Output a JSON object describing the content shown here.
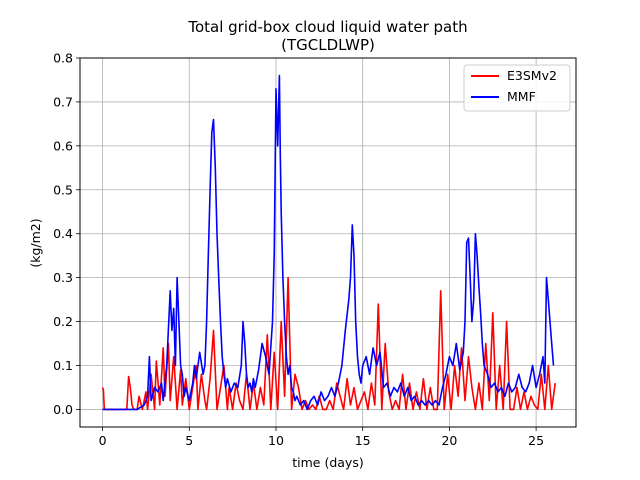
{
  "chart_data": {
    "type": "line",
    "title": "Total grid-box cloud liquid water path",
    "subtitle": "(TGCLDLWP)",
    "xlabel": "time (days)",
    "ylabel": "(kg/m2)",
    "xlim": [
      -1.3,
      27.3
    ],
    "ylim": [
      -0.04,
      0.8
    ],
    "xticks": [
      0,
      5,
      10,
      15,
      20,
      25
    ],
    "yticks": [
      0.0,
      0.1,
      0.2,
      0.3,
      0.4,
      0.5,
      0.6,
      0.7,
      0.8
    ],
    "xtick_labels": [
      "0",
      "5",
      "10",
      "15",
      "20",
      "25"
    ],
    "ytick_labels": [
      "0.0",
      "0.1",
      "0.2",
      "0.3",
      "0.4",
      "0.5",
      "0.6",
      "0.7",
      "0.8"
    ],
    "grid": true,
    "legend_position": "top-right",
    "series": [
      {
        "name": "E3SMv2",
        "color": "#ff0000",
        "x": [
          0.0,
          0.05,
          0.1,
          0.15,
          0.2,
          1.4,
          1.5,
          1.6,
          1.7,
          1.8,
          2.0,
          2.1,
          2.3,
          2.5,
          2.6,
          2.8,
          3.0,
          3.1,
          3.3,
          3.5,
          3.6,
          3.8,
          3.9,
          4.1,
          4.3,
          4.5,
          4.6,
          4.8,
          5.0,
          5.2,
          5.4,
          5.5,
          5.7,
          5.9,
          6.0,
          6.2,
          6.4,
          6.6,
          6.8,
          7.0,
          7.2,
          7.3,
          7.5,
          7.7,
          7.9,
          8.1,
          8.3,
          8.5,
          8.7,
          8.9,
          9.1,
          9.3,
          9.5,
          9.7,
          9.9,
          10.1,
          10.3,
          10.5,
          10.7,
          10.9,
          11.1,
          11.3,
          11.5,
          11.7,
          11.9,
          12.1,
          12.3,
          12.5,
          12.7,
          12.9,
          13.1,
          13.3,
          13.5,
          13.7,
          13.9,
          14.1,
          14.3,
          14.5,
          14.7,
          14.9,
          15.1,
          15.3,
          15.5,
          15.7,
          15.9,
          16.1,
          16.3,
          16.5,
          16.7,
          16.9,
          17.1,
          17.3,
          17.5,
          17.7,
          17.9,
          18.1,
          18.2,
          18.3,
          18.5,
          18.7,
          18.9,
          19.1,
          19.3,
          19.5,
          19.7,
          19.9,
          20.1,
          20.3,
          20.5,
          20.7,
          20.9,
          21.1,
          21.3,
          21.5,
          21.7,
          21.9,
          22.1,
          22.3,
          22.5,
          22.7,
          22.9,
          23.1,
          23.3,
          23.5,
          23.7,
          23.9,
          24.1,
          24.3,
          24.5,
          24.7,
          24.9,
          25.1,
          25.3,
          25.5,
          25.7,
          25.9,
          26.1
        ],
        "y": [
          0.05,
          0.045,
          0.0,
          0.0,
          0.0,
          0.0,
          0.075,
          0.05,
          0.01,
          0.0,
          0.0,
          0.03,
          0.0,
          0.04,
          0.0,
          0.08,
          0.0,
          0.11,
          0.01,
          0.14,
          0.03,
          0.15,
          0.02,
          0.12,
          0.0,
          0.09,
          0.01,
          0.07,
          0.0,
          0.05,
          0.1,
          0.0,
          0.08,
          0.02,
          0.0,
          0.07,
          0.18,
          0.0,
          0.05,
          0.1,
          0.0,
          0.05,
          0.0,
          0.06,
          0.02,
          0.0,
          0.08,
          0.0,
          0.06,
          0.0,
          0.05,
          0.01,
          0.17,
          0.0,
          0.13,
          0.0,
          0.2,
          0.03,
          0.3,
          0.0,
          0.08,
          0.05,
          0.0,
          0.02,
          0.0,
          0.01,
          0.0,
          0.03,
          0.0,
          0.0,
          0.02,
          0.0,
          0.06,
          0.03,
          0.0,
          0.07,
          0.01,
          0.05,
          0.0,
          0.02,
          0.04,
          0.0,
          0.06,
          0.01,
          0.24,
          0.0,
          0.15,
          0.04,
          0.0,
          0.02,
          0.0,
          0.08,
          0.0,
          0.06,
          0.0,
          0.04,
          0.02,
          0.0,
          0.07,
          0.0,
          0.05,
          0.0,
          0.0,
          0.27,
          0.0,
          0.08,
          0.0,
          0.1,
          0.03,
          0.14,
          0.02,
          0.12,
          0.05,
          0.0,
          0.06,
          0.0,
          0.15,
          0.02,
          0.22,
          0.0,
          0.1,
          0.0,
          0.2,
          0.0,
          0.0,
          0.05,
          0.0,
          0.04,
          0.0,
          0.03,
          0.01,
          0.0,
          0.08,
          0.0,
          0.1,
          0.0,
          0.06
        ],
        "values": [
          0.05,
          0.045,
          0.0,
          0.0,
          0.0,
          0.0,
          0.075,
          0.05,
          0.01,
          0.0,
          0.0,
          0.03,
          0.0,
          0.04,
          0.0,
          0.08,
          0.0,
          0.11,
          0.01,
          0.14,
          0.03,
          0.15,
          0.02,
          0.12,
          0.0,
          0.09,
          0.01,
          0.07,
          0.0,
          0.05,
          0.1,
          0.0,
          0.08,
          0.02,
          0.0,
          0.07,
          0.18,
          0.0,
          0.05,
          0.1,
          0.0,
          0.05,
          0.0,
          0.06,
          0.02,
          0.0,
          0.08,
          0.0,
          0.06,
          0.0,
          0.05,
          0.01,
          0.17,
          0.0,
          0.13,
          0.0,
          0.2,
          0.03,
          0.3,
          0.0,
          0.08,
          0.05,
          0.0,
          0.02,
          0.0,
          0.01,
          0.0,
          0.03,
          0.0,
          0.0,
          0.02,
          0.0,
          0.06,
          0.03,
          0.0,
          0.07,
          0.01,
          0.05,
          0.0,
          0.02,
          0.04,
          0.0,
          0.06,
          0.01,
          0.24,
          0.0,
          0.15,
          0.04,
          0.0,
          0.02,
          0.0,
          0.08,
          0.0,
          0.06,
          0.0,
          0.04,
          0.02,
          0.0,
          0.07,
          0.0,
          0.05,
          0.0,
          0.0,
          0.27,
          0.0,
          0.08,
          0.0,
          0.1,
          0.03,
          0.14,
          0.02,
          0.12,
          0.05,
          0.0,
          0.06,
          0.0,
          0.15,
          0.02,
          0.22,
          0.0,
          0.1,
          0.0,
          0.2,
          0.0,
          0.0,
          0.05,
          0.0,
          0.04,
          0.0,
          0.03,
          0.01,
          0.0,
          0.08,
          0.0,
          0.1,
          0.0,
          0.06
        ]
      },
      {
        "name": "MMF",
        "color": "#0000ff",
        "x": [
          0.0,
          0.5,
          1.0,
          1.5,
          2.0,
          2.2,
          2.4,
          2.6,
          2.7,
          2.8,
          3.0,
          3.2,
          3.4,
          3.5,
          3.7,
          3.9,
          4.0,
          4.1,
          4.2,
          4.3,
          4.4,
          4.5,
          4.6,
          4.7,
          4.8,
          5.0,
          5.2,
          5.3,
          5.4,
          5.6,
          5.8,
          5.9,
          6.0,
          6.1,
          6.2,
          6.3,
          6.4,
          6.5,
          6.6,
          6.7,
          6.8,
          6.9,
          7.0,
          7.1,
          7.2,
          7.4,
          7.6,
          7.8,
          8.0,
          8.1,
          8.2,
          8.3,
          8.4,
          8.5,
          8.6,
          8.7,
          8.8,
          9.0,
          9.2,
          9.4,
          9.6,
          9.8,
          9.9,
          10.0,
          10.1,
          10.2,
          10.25,
          10.3,
          10.4,
          10.5,
          10.6,
          10.7,
          10.8,
          10.9,
          11.0,
          11.1,
          11.2,
          11.4,
          11.6,
          11.8,
          12.0,
          12.2,
          12.4,
          12.6,
          12.8,
          13.0,
          13.2,
          13.4,
          13.6,
          13.8,
          14.0,
          14.2,
          14.3,
          14.4,
          14.5,
          14.6,
          14.7,
          14.8,
          14.9,
          15.0,
          15.2,
          15.4,
          15.6,
          15.8,
          16.0,
          16.2,
          16.4,
          16.6,
          16.8,
          17.0,
          17.2,
          17.4,
          17.6,
          17.8,
          18.0,
          18.2,
          18.4,
          18.6,
          18.8,
          19.0,
          19.2,
          19.4,
          19.5,
          19.6,
          19.8,
          20.0,
          20.2,
          20.4,
          20.6,
          20.8,
          20.9,
          21.0,
          21.1,
          21.2,
          21.3,
          21.4,
          21.5,
          21.6,
          21.7,
          21.8,
          21.9,
          22.0,
          22.2,
          22.4,
          22.6,
          22.8,
          23.0,
          23.2,
          23.4,
          23.6,
          23.8,
          24.0,
          24.2,
          24.4,
          24.6,
          24.8,
          25.0,
          25.2,
          25.4,
          25.5,
          25.6,
          25.7,
          25.8,
          25.9,
          26.0
        ],
        "y": [
          0.0,
          0.0,
          0.0,
          0.0,
          0.0,
          0.005,
          0.01,
          0.03,
          0.12,
          0.02,
          0.05,
          0.04,
          0.06,
          0.02,
          0.1,
          0.27,
          0.18,
          0.23,
          0.1,
          0.3,
          0.2,
          0.1,
          0.08,
          0.03,
          0.05,
          0.02,
          0.06,
          0.1,
          0.07,
          0.13,
          0.08,
          0.1,
          0.2,
          0.35,
          0.5,
          0.63,
          0.66,
          0.55,
          0.4,
          0.3,
          0.2,
          0.12,
          0.08,
          0.05,
          0.07,
          0.04,
          0.06,
          0.05,
          0.1,
          0.2,
          0.15,
          0.08,
          0.05,
          0.06,
          0.04,
          0.07,
          0.05,
          0.09,
          0.15,
          0.12,
          0.08,
          0.2,
          0.35,
          0.73,
          0.6,
          0.76,
          0.58,
          0.45,
          0.3,
          0.2,
          0.12,
          0.08,
          0.1,
          0.05,
          0.04,
          0.02,
          0.03,
          0.01,
          0.02,
          0.0,
          0.02,
          0.03,
          0.01,
          0.04,
          0.02,
          0.03,
          0.05,
          0.03,
          0.06,
          0.1,
          0.18,
          0.25,
          0.3,
          0.42,
          0.35,
          0.2,
          0.12,
          0.08,
          0.06,
          0.1,
          0.12,
          0.08,
          0.14,
          0.1,
          0.13,
          0.05,
          0.06,
          0.03,
          0.05,
          0.04,
          0.06,
          0.03,
          0.05,
          0.02,
          0.03,
          0.01,
          0.02,
          0.01,
          0.02,
          0.01,
          0.02,
          0.01,
          0.03,
          0.05,
          0.08,
          0.12,
          0.1,
          0.15,
          0.09,
          0.13,
          0.2,
          0.38,
          0.39,
          0.3,
          0.2,
          0.25,
          0.4,
          0.35,
          0.28,
          0.22,
          0.15,
          0.1,
          0.08,
          0.05,
          0.06,
          0.04,
          0.05,
          0.03,
          0.06,
          0.04,
          0.05,
          0.08,
          0.05,
          0.04,
          0.06,
          0.1,
          0.05,
          0.08,
          0.12,
          0.06,
          0.3,
          0.25,
          0.2,
          0.15,
          0.1
        ]
      }
    ]
  }
}
